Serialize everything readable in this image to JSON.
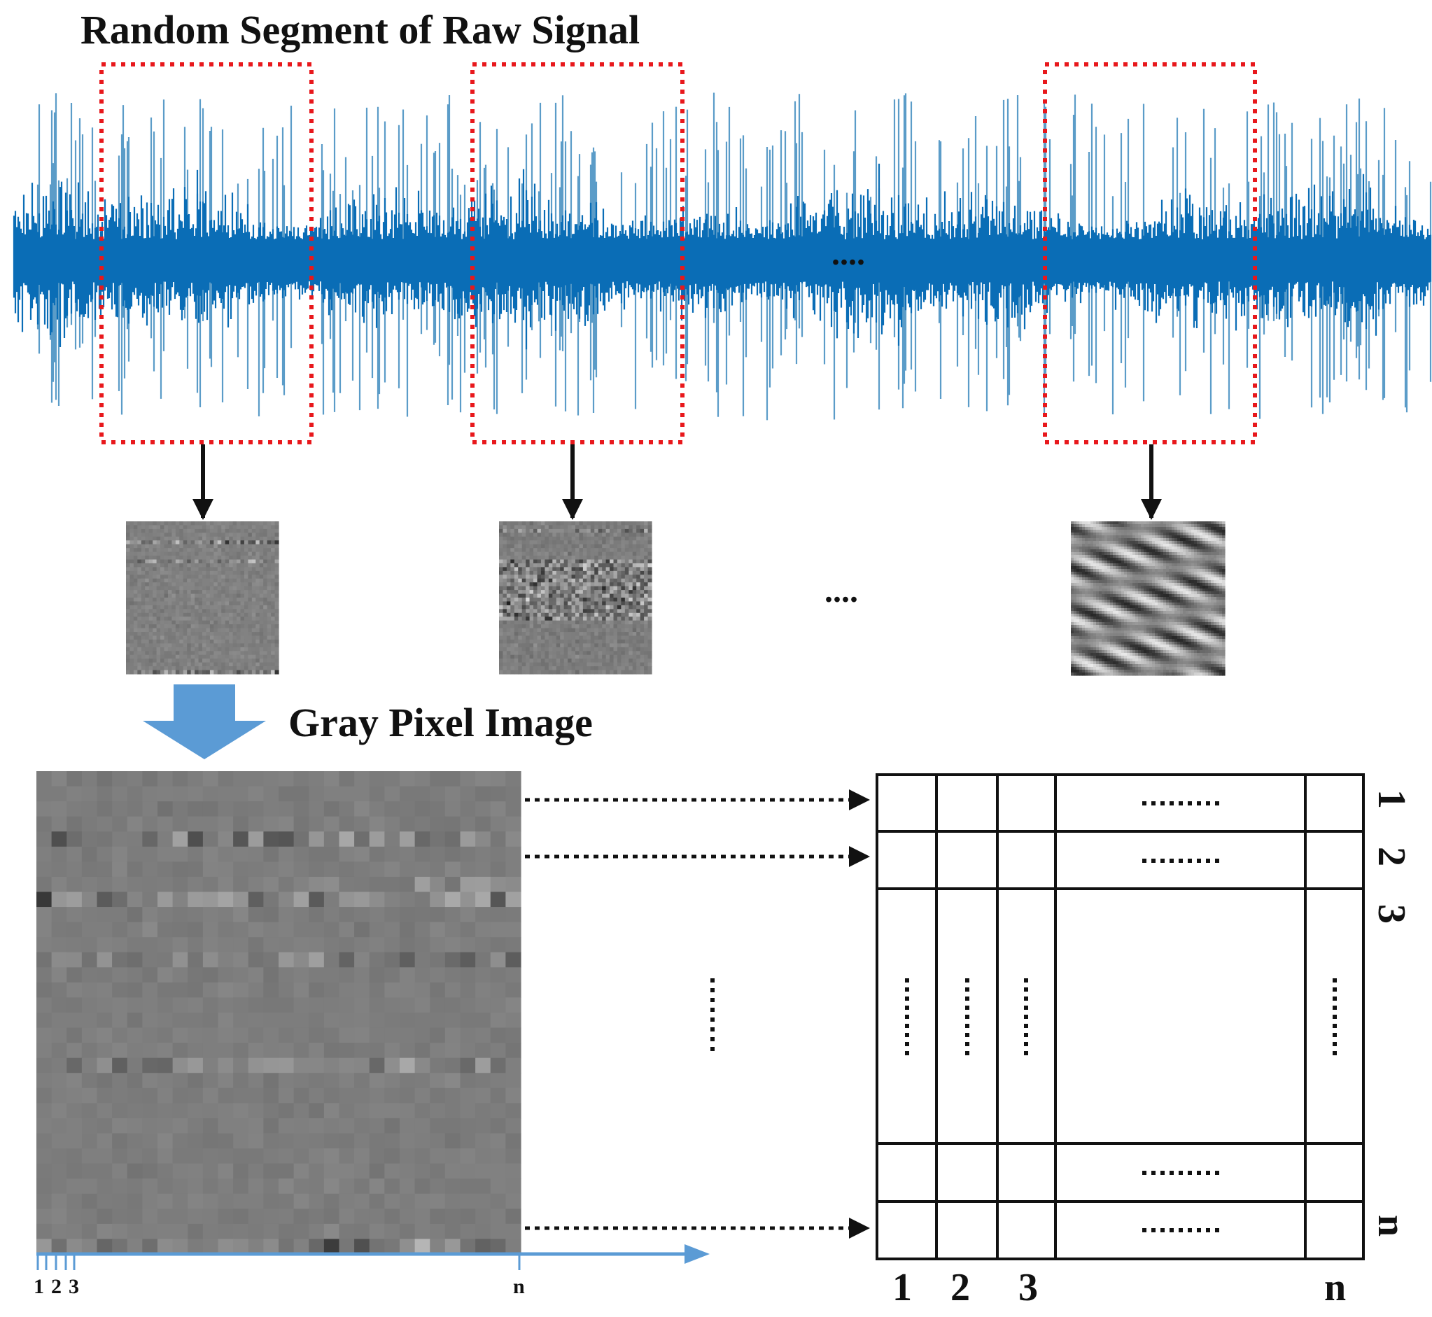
{
  "title": "Random Segment of Raw Signal",
  "gray_label": "Gray Pixel Image",
  "ellipsis_mid": "....",
  "ellipsis_thumb": "....",
  "ellipsis_vertical": "......",
  "ellipsis_grid": "......",
  "matrix": {
    "col_labels": [
      "1",
      "2",
      "3",
      "n"
    ],
    "row_labels": [
      "1",
      "2",
      "3",
      "n"
    ]
  },
  "axis_ticks": [
    "1",
    "2",
    "3",
    "n"
  ],
  "colors": {
    "signal": "#0a6db6",
    "signal_light": "#5b9cc8",
    "segment_box": "#e8181c",
    "arrow_blue": "#5b9bd5",
    "text": "#111111"
  }
}
